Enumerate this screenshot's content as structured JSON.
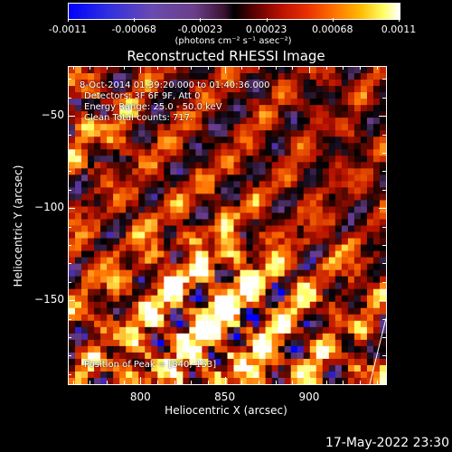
{
  "colorbar": {
    "tick_labels": [
      "-0.0011",
      "-0.00068",
      "-0.00023",
      "0.00023",
      "0.00068",
      "0.0011"
    ],
    "units": "(photons cm⁻² s⁻¹ asec⁻²)",
    "colormap": [
      "#0000ff",
      "#6a3f8a",
      "#000000",
      "#b81000",
      "#ff7000",
      "#ffff60",
      "#ffffff"
    ]
  },
  "chart_data": {
    "type": "heatmap",
    "title": "Reconstructed RHESSI Image",
    "xlabel": "Heliocentric X (arcsec)",
    "ylabel": "Heliocentric Y (arcsec)",
    "xlim": [
      757,
      945
    ],
    "ylim": [
      -195,
      -23
    ],
    "x_ticks": [
      "800",
      "850",
      "900"
    ],
    "y_ticks": [
      "-50",
      "-100",
      "-150"
    ],
    "zlim": [
      -0.0011,
      0.0011
    ],
    "annotations": [
      "8-Oct-2014 01:39:20.000 to 01:40:36.000",
      "Detectors: 3F 6F 9F, Att 0",
      "Energy Range: 25.0 - 50.0 keV",
      "Clean     Total counts: 717."
    ],
    "peak_label": "Position of Peak = [840,-153]",
    "peak": {
      "x": 840,
      "y": -153
    }
  },
  "timestamp": "17-May-2022 23:30"
}
